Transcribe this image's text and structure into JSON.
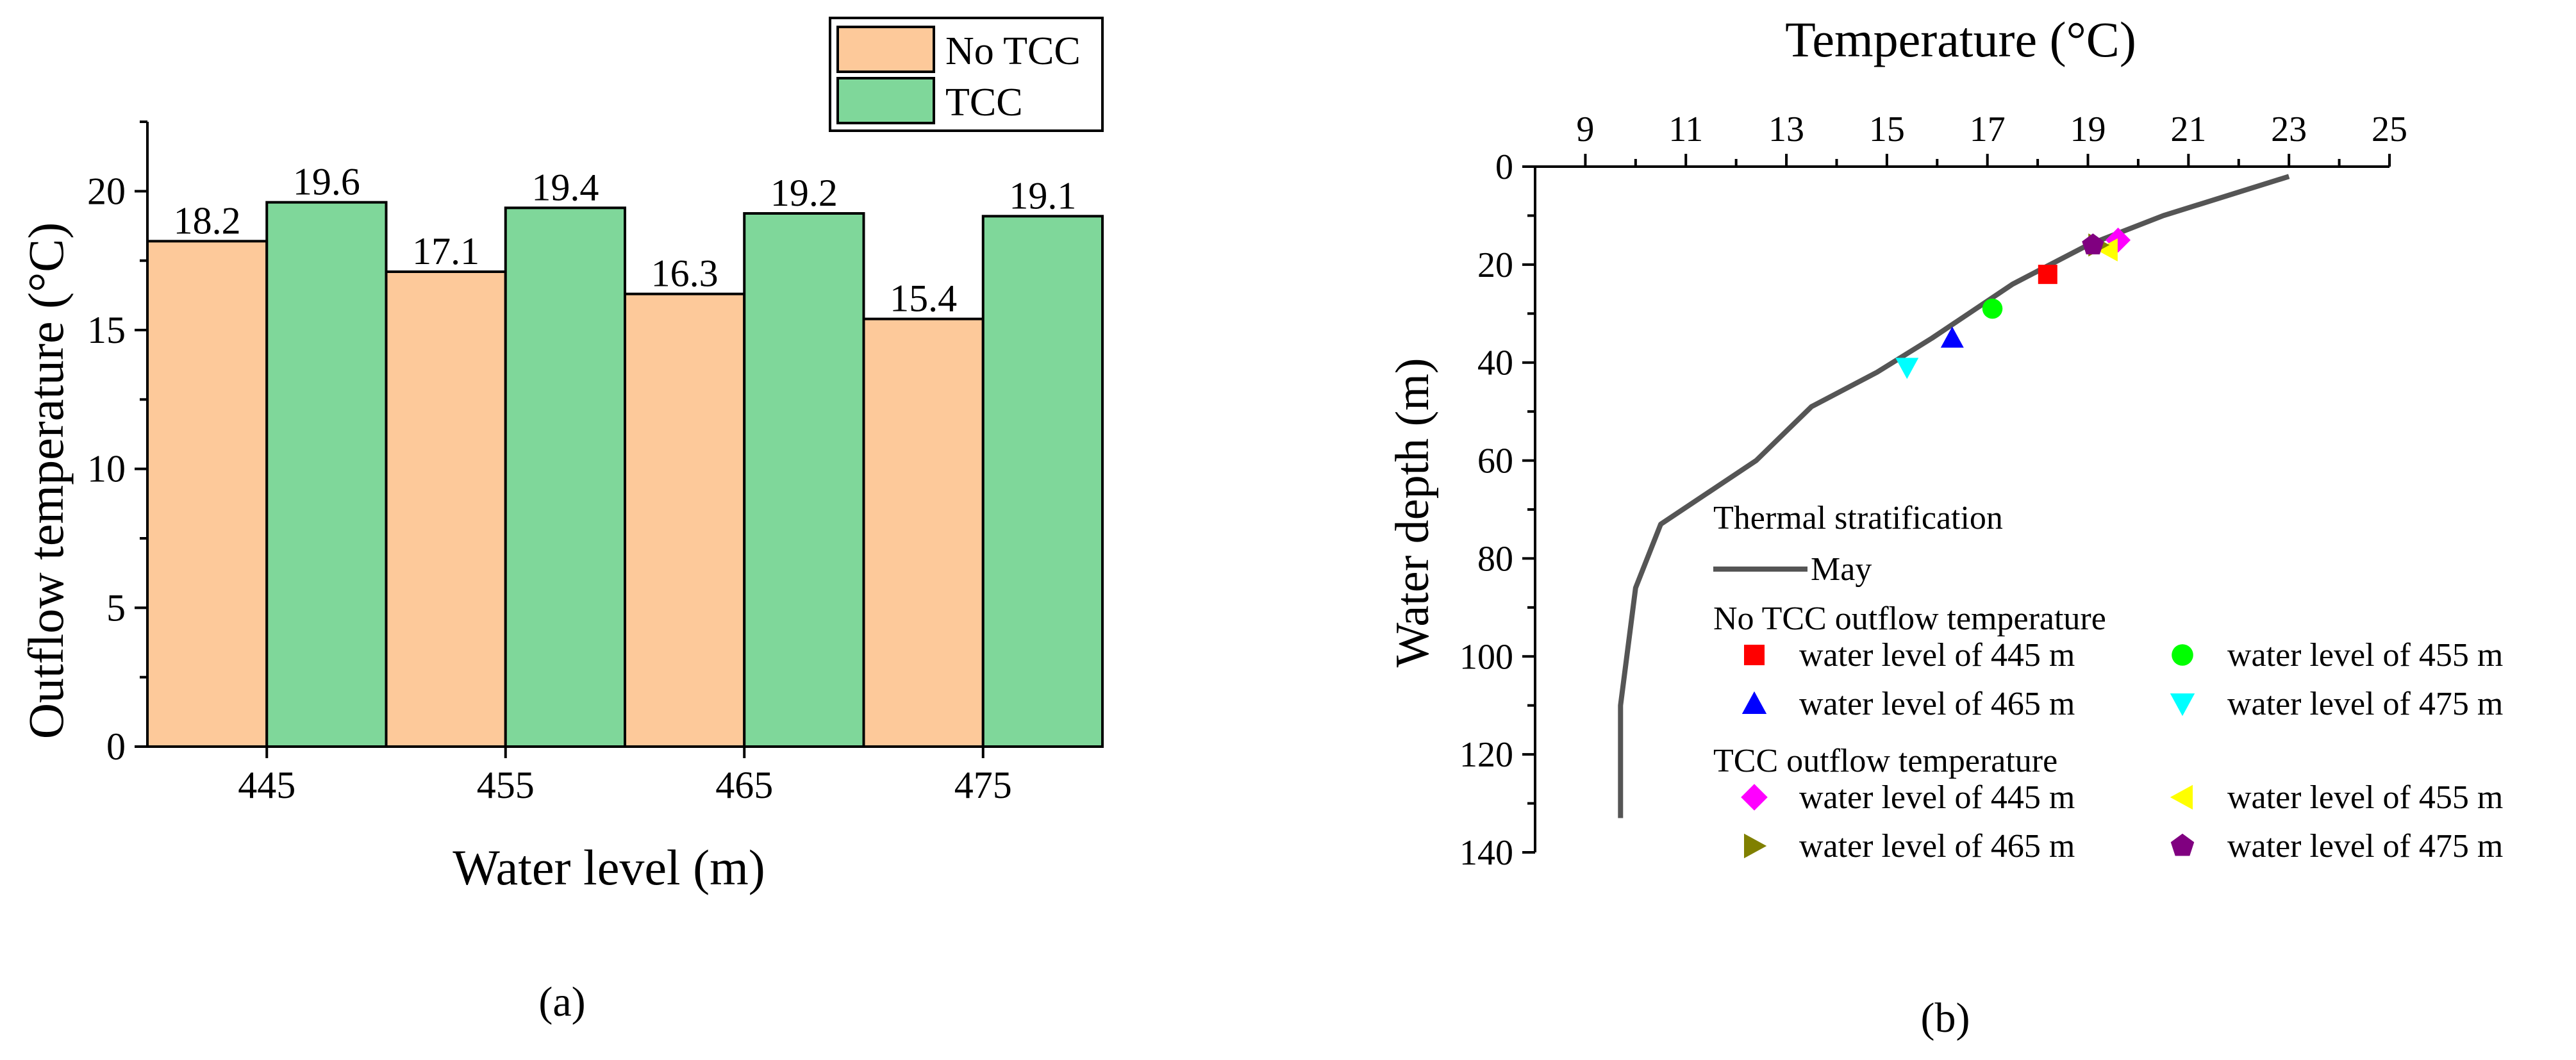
{
  "chart_data": [
    {
      "type": "bar",
      "panel_label": "(a)",
      "xlabel": "Water level (m)",
      "ylabel": "Outflow temperature (°C)",
      "categories": [
        "445",
        "455",
        "465",
        "475"
      ],
      "ylim": [
        0,
        22.5
      ],
      "yticks": [
        0,
        5,
        10,
        15,
        20
      ],
      "series": [
        {
          "name": "No TCC",
          "color": "#FDC99A",
          "values": [
            18.2,
            17.1,
            16.3,
            15.4
          ]
        },
        {
          "name": "TCC",
          "color": "#7FD79A",
          "values": [
            19.6,
            19.4,
            19.2,
            19.1
          ]
        }
      ],
      "legend": "top-right"
    },
    {
      "type": "scatter",
      "panel_label": "(b)",
      "xlabel": "Temperature (°C)",
      "ylabel": "Water depth (m)",
      "xlim": [
        8,
        25
      ],
      "xticks": [
        9,
        11,
        13,
        15,
        17,
        19,
        21,
        23,
        25
      ],
      "ylim": [
        0,
        140
      ],
      "yticks": [
        0,
        20,
        40,
        60,
        80,
        100,
        120,
        140
      ],
      "y_inverted": true,
      "legend_title": "Thermal stratification",
      "line": {
        "name": "May",
        "color": "#555555",
        "points": [
          [
            23.0,
            2
          ],
          [
            20.5,
            10
          ],
          [
            19.0,
            16
          ],
          [
            17.5,
            24
          ],
          [
            15.9,
            35
          ],
          [
            14.8,
            42
          ],
          [
            13.5,
            49
          ],
          [
            12.4,
            60
          ],
          [
            10.5,
            73
          ],
          [
            10.0,
            86
          ],
          [
            9.7,
            110
          ],
          [
            9.7,
            133
          ]
        ]
      },
      "groups": [
        {
          "title": "No TCC outflow temperature",
          "series": [
            {
              "name": "water level of 445 m",
              "marker": "square",
              "color": "#FF0000",
              "x": 18.2,
              "y": 22
            },
            {
              "name": "water level of 455 m",
              "marker": "circle",
              "color": "#00FF00",
              "x": 17.1,
              "y": 29
            },
            {
              "name": "water level of 465 m",
              "marker": "triangle-up",
              "color": "#0000FF",
              "x": 16.3,
              "y": 35
            },
            {
              "name": "water level of 475 m",
              "marker": "triangle-down",
              "color": "#00FFFF",
              "x": 15.4,
              "y": 41
            }
          ]
        },
        {
          "title": "TCC outflow temperature",
          "series": [
            {
              "name": "water level of 445 m",
              "marker": "diamond",
              "color": "#FF00FF",
              "x": 19.6,
              "y": 15
            },
            {
              "name": "water level of 455 m",
              "marker": "triangle-left",
              "color": "#FFFF00",
              "x": 19.4,
              "y": 17
            },
            {
              "name": "water level of 465 m",
              "marker": "triangle-right",
              "color": "#808000",
              "x": 19.2,
              "y": 16
            },
            {
              "name": "water level of 475 m",
              "marker": "pentagon",
              "color": "#800080",
              "x": 19.1,
              "y": 16
            }
          ]
        }
      ]
    }
  ]
}
